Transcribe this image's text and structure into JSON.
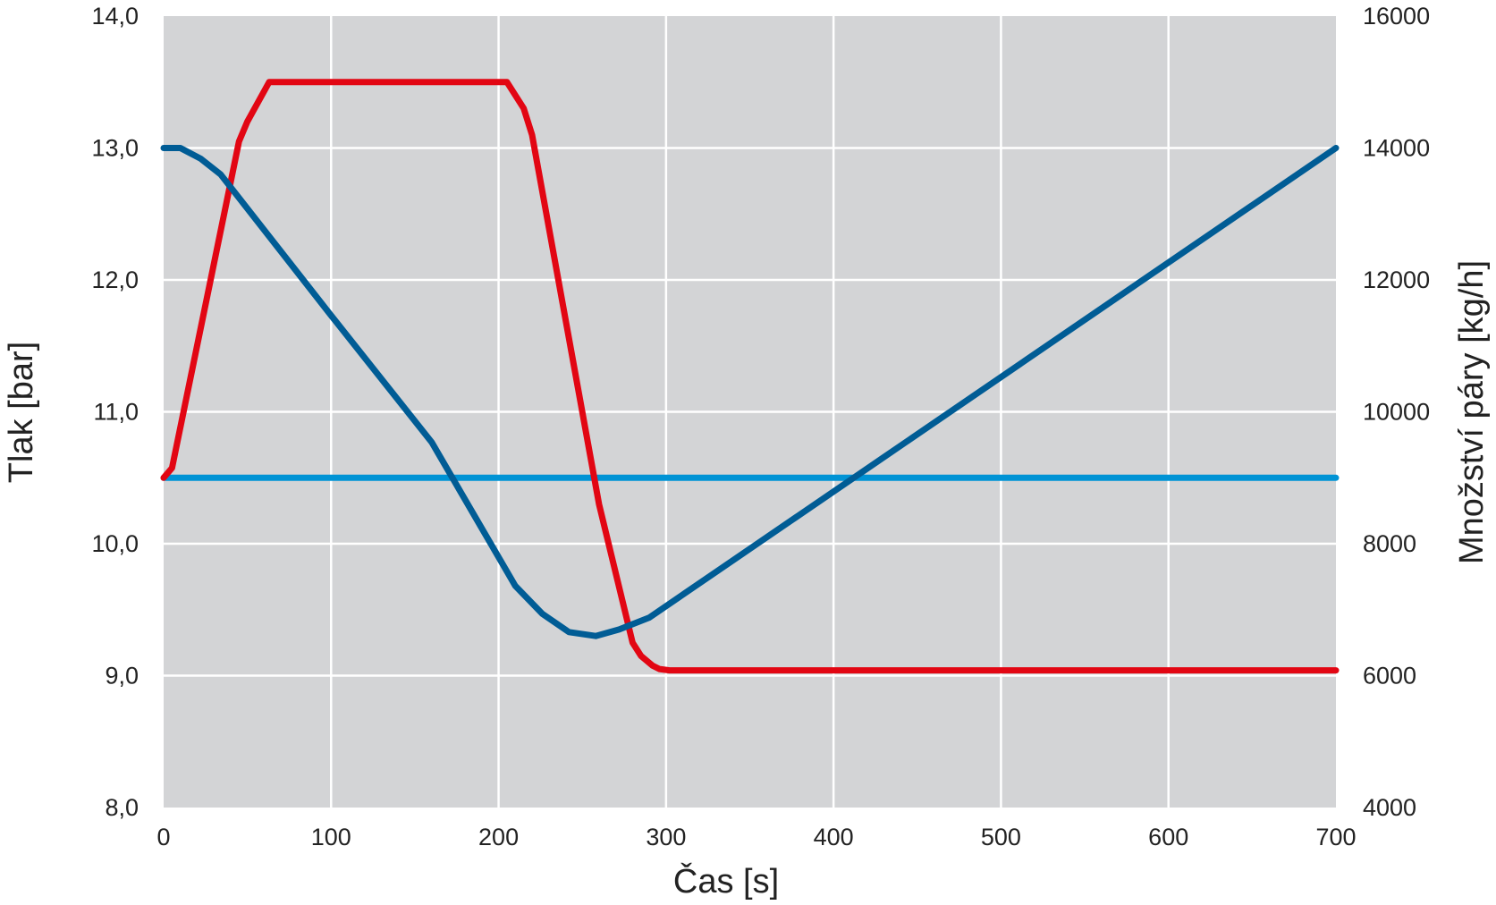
{
  "chart_data": {
    "type": "line",
    "title": "",
    "xlabel": "Čas [s]",
    "ylabel_left": "Tlak [bar]",
    "ylabel_right": "Množství páry [kg/h]",
    "xlim": [
      0,
      700
    ],
    "ylim_left": [
      8.0,
      14.0
    ],
    "ylim_right": [
      4000,
      16000
    ],
    "x_ticks": [
      "0",
      "100",
      "200",
      "300",
      "400",
      "500",
      "600",
      "700"
    ],
    "y_left_ticks": [
      "8,0",
      "9,0",
      "10,0",
      "11,0",
      "12,0",
      "13,0",
      "14,0"
    ],
    "y_right_ticks": [
      "4000",
      "6000",
      "8000",
      "10000",
      "12000",
      "14000",
      "16000"
    ],
    "grid": true,
    "plot_background": "#d3d4d6",
    "series": [
      {
        "axis": "left",
        "color": "#005c95",
        "x": [
          0,
          10,
          22,
          34,
          100,
          160,
          210,
          226,
          242,
          258,
          272,
          290,
          700
        ],
        "y": [
          13.0,
          13.0,
          12.92,
          12.8,
          11.73,
          10.77,
          9.68,
          9.47,
          9.33,
          9.3,
          9.35,
          9.44,
          13.0
        ]
      },
      {
        "axis": "right",
        "color": "#e20613",
        "x": [
          0,
          5,
          45,
          50,
          63,
          100,
          150,
          205,
          215,
          220,
          260,
          280,
          285,
          292,
          296,
          302,
          700
        ],
        "y": [
          9000,
          9150,
          14100,
          14400,
          15000,
          15000,
          15000,
          15000,
          14600,
          14200,
          8600,
          6500,
          6300,
          6150,
          6100,
          6080,
          6080
        ]
      },
      {
        "axis": "right",
        "color": "#0093d5",
        "x": [
          0,
          700
        ],
        "y": [
          9000,
          9000
        ]
      }
    ]
  }
}
